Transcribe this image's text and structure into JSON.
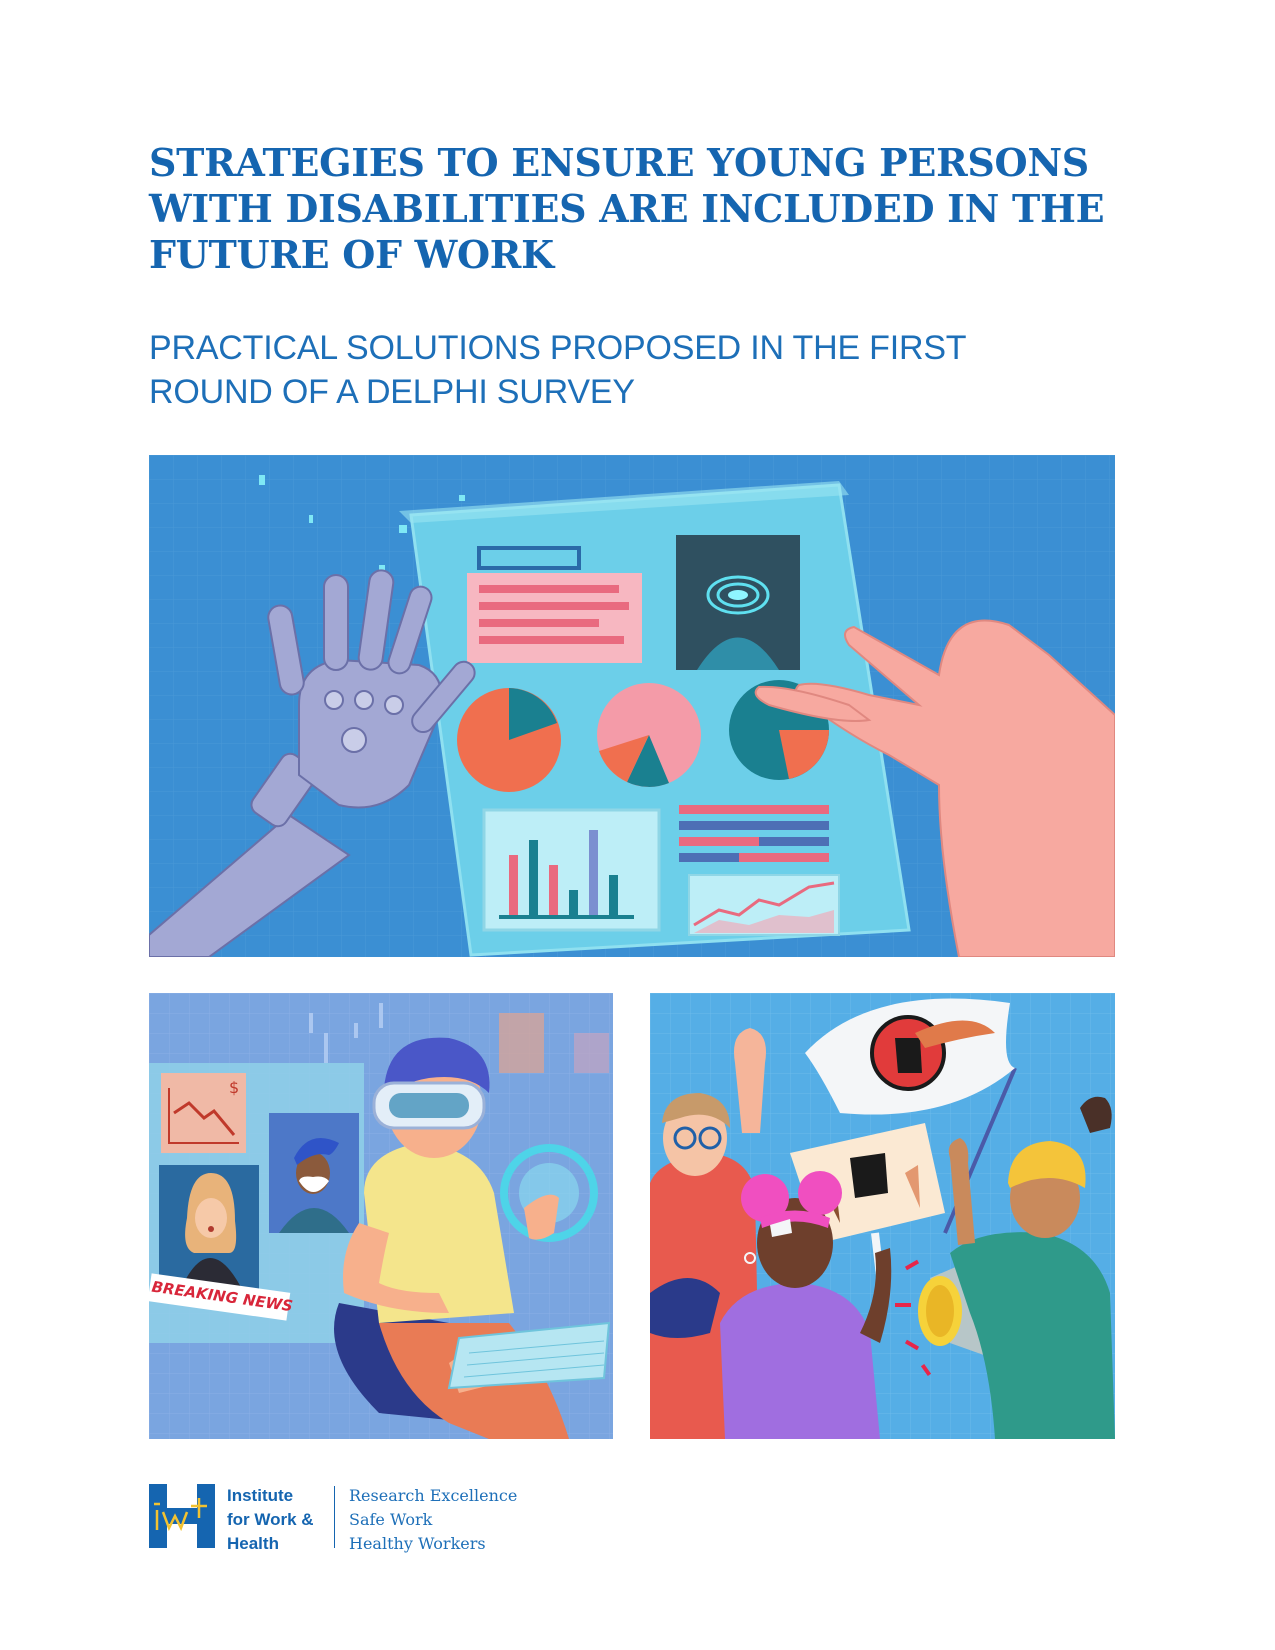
{
  "report": {
    "title_lines": [
      "STRATEGIES TO ENSURE YOUNG PERSONS",
      "WITH DISABILITIES ARE INCLUDED IN THE",
      "FUTURE OF WORK"
    ],
    "subtitle_lines": [
      "PRACTICAL SOLUTIONS PROPOSED IN THE FIRST",
      "ROUND OF A DELPHI SURVEY"
    ]
  },
  "illustrations": {
    "bottom_left": {
      "banner_text": "BREAKING NEWS",
      "currency_glyph": "$"
    }
  },
  "colors": {
    "brand_blue": "#1565b0",
    "panel_top_bg": "#3b8fd3",
    "panel_bl_bg": "#7aa5e0",
    "panel_br_bg": "#55aee6"
  },
  "footer": {
    "logo": {
      "icon": "iwh-logo-icon",
      "mark_text": "IWH",
      "name_lines": [
        "Institute",
        "for Work &",
        "Health"
      ]
    },
    "tagline_lines": [
      "Research Excellence",
      "Safe Work",
      "Healthy Workers"
    ]
  }
}
